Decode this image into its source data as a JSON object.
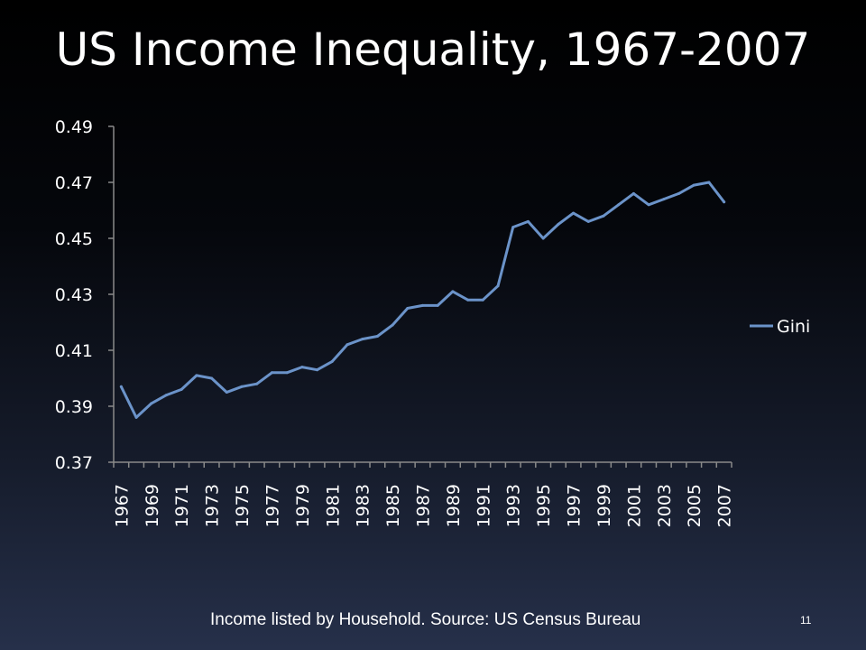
{
  "slide": {
    "title": "US Income Inequality, 1967-2007",
    "footnote": "Income listed by Household. Source: US Census Bureau",
    "page_number": "11"
  },
  "chart_data": {
    "type": "line",
    "title": "",
    "xlabel": "",
    "ylabel": "",
    "ylim": [
      0.37,
      0.49
    ],
    "yticks": [
      "0.37",
      "0.39",
      "0.41",
      "0.43",
      "0.45",
      "0.47",
      "0.49"
    ],
    "xtick_labels": [
      "1967",
      "1969",
      "1971",
      "1973",
      "1975",
      "1977",
      "1979",
      "1981",
      "1983",
      "1985",
      "1987",
      "1989",
      "1991",
      "1993",
      "1995",
      "1997",
      "1999",
      "2001",
      "2003",
      "2005",
      "2007"
    ],
    "grid": false,
    "legend_position": "right",
    "line_color": "#6b93c9",
    "x": [
      1967,
      1968,
      1969,
      1970,
      1971,
      1972,
      1973,
      1974,
      1975,
      1976,
      1977,
      1978,
      1979,
      1980,
      1981,
      1982,
      1983,
      1984,
      1985,
      1986,
      1987,
      1988,
      1989,
      1990,
      1991,
      1992,
      1993,
      1994,
      1995,
      1996,
      1997,
      1998,
      1999,
      2000,
      2001,
      2002,
      2003,
      2004,
      2005,
      2006,
      2007
    ],
    "series": [
      {
        "name": "Gini",
        "values": [
          0.397,
          0.386,
          0.391,
          0.394,
          0.396,
          0.401,
          0.4,
          0.395,
          0.397,
          0.398,
          0.402,
          0.402,
          0.404,
          0.403,
          0.406,
          0.412,
          0.414,
          0.415,
          0.419,
          0.425,
          0.426,
          0.426,
          0.431,
          0.428,
          0.428,
          0.433,
          0.454,
          0.456,
          0.45,
          0.455,
          0.459,
          0.456,
          0.458,
          0.462,
          0.466,
          0.462,
          0.464,
          0.466,
          0.469,
          0.47,
          0.463
        ]
      }
    ]
  }
}
